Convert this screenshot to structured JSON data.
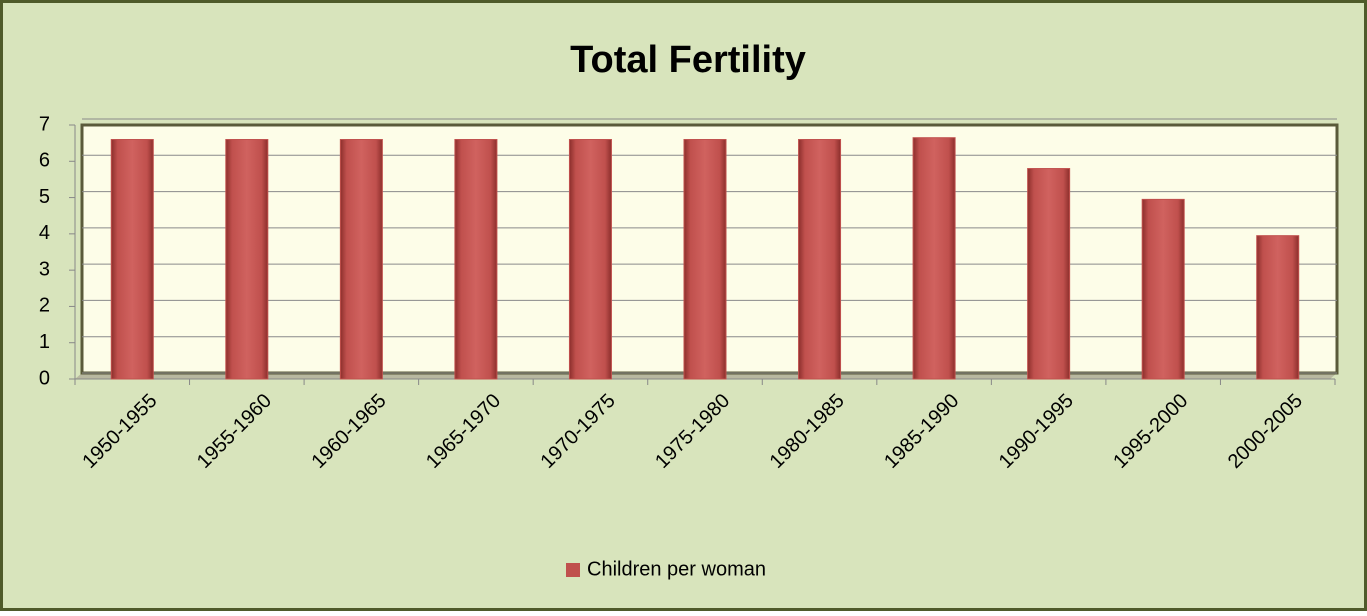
{
  "chart_data": {
    "type": "bar",
    "title": "Total Fertility",
    "categories": [
      "1950-1955",
      "1955-1960",
      "1960-1965",
      "1965-1970",
      "1970-1975",
      "1975-1980",
      "1980-1985",
      "1985-1990",
      "1990-1995",
      "1995-2000",
      "2000-2005"
    ],
    "series": [
      {
        "name": "Children per woman",
        "color": "#c0504d",
        "values": [
          6.6,
          6.6,
          6.6,
          6.6,
          6.6,
          6.6,
          6.6,
          6.65,
          5.8,
          4.95,
          3.95
        ]
      }
    ],
    "ylim": [
      0,
      7
    ],
    "yticks": [
      0,
      1,
      2,
      3,
      4,
      5,
      6,
      7
    ],
    "grid": true,
    "legend": "bottom"
  }
}
